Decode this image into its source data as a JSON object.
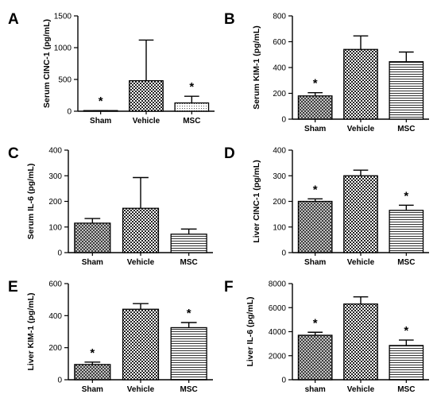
{
  "chart_data": [
    {
      "panel": "A",
      "type": "bar",
      "ylabel": "Serum CINC-1 (pg/mL)",
      "ylim": [
        0,
        1500
      ],
      "yticks": [
        0,
        500,
        1000,
        1500
      ],
      "categories": [
        "Sham",
        "Vehicle",
        "MSC"
      ],
      "values": [
        5,
        480,
        130
      ],
      "errors": [
        5,
        640,
        105
      ],
      "significant": [
        true,
        false,
        true
      ],
      "fills": [
        "crosshatch",
        "checker",
        "dots"
      ]
    },
    {
      "panel": "B",
      "type": "bar",
      "ylabel": "Serum KIM-1 (pg/mL)",
      "ylim": [
        0,
        800
      ],
      "yticks": [
        0,
        200,
        400,
        600,
        800
      ],
      "categories": [
        "Sham",
        "Vehicle",
        "MSC"
      ],
      "values": [
        180,
        540,
        445
      ],
      "errors": [
        25,
        105,
        75
      ],
      "significant": [
        true,
        false,
        false
      ],
      "fills": [
        "crosshatch",
        "checker",
        "hlines"
      ]
    },
    {
      "panel": "C",
      "type": "bar",
      "ylabel": "Serum IL-6 (pg/mL)",
      "ylim": [
        0,
        400
      ],
      "yticks": [
        0,
        100,
        200,
        300,
        400
      ],
      "categories": [
        "Sham",
        "Vehicle",
        "MSC"
      ],
      "values": [
        115,
        173,
        72
      ],
      "errors": [
        18,
        120,
        20
      ],
      "significant": [
        false,
        false,
        false
      ],
      "fills": [
        "crosshatch",
        "checker",
        "hlines"
      ]
    },
    {
      "panel": "D",
      "type": "bar",
      "ylabel": "Liver CINC-1 (pg/mL)",
      "ylim": [
        0,
        400
      ],
      "yticks": [
        0,
        100,
        200,
        300,
        400
      ],
      "categories": [
        "Sham",
        "Vehicle",
        "MSC"
      ],
      "values": [
        200,
        300,
        165
      ],
      "errors": [
        10,
        22,
        20
      ],
      "significant": [
        true,
        false,
        true
      ],
      "fills": [
        "crosshatch",
        "checker",
        "hlines"
      ]
    },
    {
      "panel": "E",
      "type": "bar",
      "ylabel": "Liver KIM-1 (pg/mL)",
      "ylim": [
        0,
        600
      ],
      "yticks": [
        0,
        200,
        400,
        600
      ],
      "categories": [
        "Sham",
        "Vehicle",
        "MSC"
      ],
      "values": [
        95,
        440,
        325
      ],
      "errors": [
        15,
        35,
        32
      ],
      "significant": [
        true,
        false,
        true
      ],
      "fills": [
        "crosshatch",
        "checker",
        "hlines"
      ]
    },
    {
      "panel": "F",
      "type": "bar",
      "ylabel": "Liver IL-6 (pg/mL)",
      "ylim": [
        0,
        8000
      ],
      "yticks": [
        0,
        2000,
        4000,
        6000,
        8000
      ],
      "categories": [
        "sham",
        "Vehicle",
        "MSC"
      ],
      "values": [
        3700,
        6300,
        2850
      ],
      "errors": [
        250,
        600,
        450
      ],
      "significant": [
        true,
        false,
        true
      ],
      "fills": [
        "crosshatch",
        "checker",
        "hlines"
      ]
    }
  ]
}
